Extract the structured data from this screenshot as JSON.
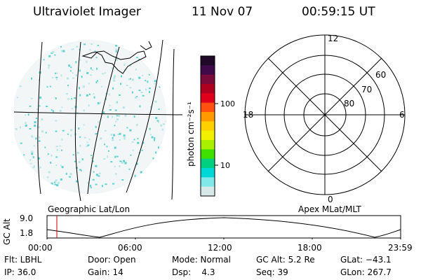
{
  "header": {
    "instrument": "Ultraviolet Imager",
    "date": "11 Nov 07",
    "time": "00:59:15 UT"
  },
  "colorbar": {
    "unit_label": "photon cm⁻²s⁻¹",
    "ticks": [
      "100",
      "10"
    ],
    "colors": [
      "#1e0a28",
      "#400a4a",
      "#7a0a3a",
      "#b00020",
      "#e0001c",
      "#ff5010",
      "#ff9a00",
      "#ffd000",
      "#f0f000",
      "#a8f000",
      "#40e000",
      "#00d080",
      "#00d8d8",
      "#80e8e8",
      "#d8e8e8"
    ]
  },
  "map_panel": {
    "caption": "Geographic Lat/Lon",
    "pixel_color": "#5fd3d3"
  },
  "polar_panel": {
    "caption": "Apex MLat/MLT",
    "mlt_labels": {
      "top": "12",
      "left": "18",
      "right": "6",
      "bottom": "0"
    },
    "lat_labels": [
      "60",
      "70",
      "80"
    ]
  },
  "altitude_plot": {
    "ylabel": "GC Alt",
    "y_ticks": [
      "9.0",
      "1.8"
    ],
    "x_ticks": [
      "00:00",
      "06:00",
      "12:00",
      "18:00",
      "23:59"
    ],
    "marker_color": "#c00000"
  },
  "status": {
    "flt": "Flt: LBHL",
    "door": "Door: Open",
    "mode": "Mode: Normal",
    "gc_alt": "GC Alt: 5.2 Re",
    "glat": "GLat: −43.1",
    "ip": "IP: 36.0",
    "gain": "Gain: 14",
    "dsp": "Dsp:    4.3",
    "seq": "Seq: 39",
    "glon": "GLon: 267.7"
  }
}
